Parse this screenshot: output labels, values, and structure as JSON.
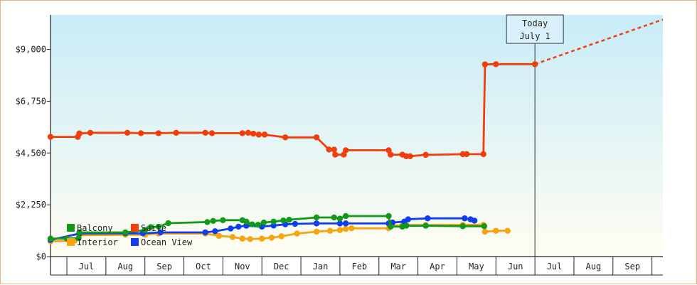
{
  "chart_data": {
    "type": "line",
    "y_ticks": [
      "$0",
      "$2,250",
      "$4,500",
      "$6,750",
      "$9,000"
    ],
    "y_tick_values": [
      0,
      2250,
      4500,
      6750,
      9000
    ],
    "ylim": [
      0,
      10500
    ],
    "month_labels": [
      "Jul",
      "Aug",
      "Sep",
      "Oct",
      "Nov",
      "Dec",
      "Jan",
      "Feb",
      "Mar",
      "Apr",
      "May",
      "Jun",
      "Jul",
      "Aug",
      "Sep"
    ],
    "x_unit": "month index, 0 = start of Jul (year 1), 15 = end of Sep (year 2)",
    "xlim": [
      -0.42,
      15.28
    ],
    "grid": false,
    "background_gradient": [
      "#c8ecf8",
      "#fffdf2"
    ],
    "today": {
      "line1": "Today",
      "line2": "July 1",
      "x": 12.0
    },
    "legend": {
      "placement": "bottom-left",
      "entries": [
        {
          "name": "Balcony",
          "color": "#119a19"
        },
        {
          "name": "Suite",
          "color": "#f23e0a"
        },
        {
          "name": "Interior",
          "color": "#f6a511"
        },
        {
          "name": "Ocean View",
          "color": "#0f3df0"
        }
      ]
    },
    "series": [
      {
        "name": "Suite",
        "color": "#f23e0a",
        "points": [
          [
            -0.42,
            5200
          ],
          [
            0.28,
            5200
          ],
          [
            0.32,
            5350
          ],
          [
            0.6,
            5380
          ],
          [
            1.55,
            5380
          ],
          [
            1.9,
            5360
          ],
          [
            2.35,
            5360
          ],
          [
            2.8,
            5380
          ],
          [
            3.55,
            5380
          ],
          [
            3.72,
            5360
          ],
          [
            4.5,
            5360
          ],
          [
            4.65,
            5380
          ],
          [
            4.78,
            5340
          ],
          [
            4.92,
            5300
          ],
          [
            5.07,
            5300
          ],
          [
            5.6,
            5180
          ],
          [
            6.4,
            5180
          ],
          [
            6.72,
            4650
          ],
          [
            6.85,
            4650
          ],
          [
            6.88,
            4430
          ],
          [
            7.1,
            4430
          ],
          [
            7.15,
            4620
          ],
          [
            8.25,
            4620
          ],
          [
            8.3,
            4430
          ],
          [
            8.6,
            4430
          ],
          [
            8.7,
            4360
          ],
          [
            8.8,
            4360
          ],
          [
            9.2,
            4420
          ],
          [
            10.15,
            4450
          ],
          [
            10.25,
            4450
          ],
          [
            10.68,
            4450
          ],
          [
            10.72,
            8350
          ],
          [
            11.0,
            8360
          ],
          [
            12.0,
            8360
          ]
        ],
        "projection": [
          [
            12.0,
            8360
          ],
          [
            15.28,
            10300
          ]
        ]
      },
      {
        "name": "Balcony",
        "color": "#119a19",
        "points": [
          [
            -0.42,
            780
          ],
          [
            0.0,
            780
          ],
          [
            0.3,
            800
          ],
          [
            0.32,
            1050
          ],
          [
            1.5,
            1050
          ],
          [
            2.0,
            1150
          ],
          [
            2.15,
            1280
          ],
          [
            2.35,
            1300
          ],
          [
            2.6,
            1450
          ],
          [
            3.6,
            1500
          ],
          [
            3.75,
            1550
          ],
          [
            4.0,
            1580
          ],
          [
            4.5,
            1580
          ],
          [
            4.6,
            1520
          ],
          [
            4.75,
            1400
          ],
          [
            4.9,
            1380
          ],
          [
            5.05,
            1480
          ],
          [
            5.3,
            1520
          ],
          [
            5.55,
            1570
          ],
          [
            5.7,
            1600
          ],
          [
            6.4,
            1700
          ],
          [
            6.85,
            1700
          ],
          [
            7.0,
            1650
          ],
          [
            7.15,
            1760
          ],
          [
            8.25,
            1760
          ],
          [
            8.3,
            1300
          ],
          [
            8.6,
            1300
          ],
          [
            8.7,
            1340
          ],
          [
            9.2,
            1340
          ],
          [
            10.15,
            1320
          ],
          [
            10.7,
            1320
          ]
        ]
      },
      {
        "name": "Interior",
        "color": "#f6a511",
        "points": [
          [
            -0.42,
            660
          ],
          [
            0.2,
            690
          ],
          [
            0.32,
            930
          ],
          [
            1.5,
            950
          ],
          [
            2.0,
            950
          ],
          [
            2.35,
            1000
          ],
          [
            3.55,
            1000
          ],
          [
            3.9,
            900
          ],
          [
            4.25,
            850
          ],
          [
            4.5,
            780
          ],
          [
            4.7,
            760
          ],
          [
            5.0,
            780
          ],
          [
            5.25,
            820
          ],
          [
            5.5,
            880
          ],
          [
            5.9,
            1000
          ],
          [
            6.4,
            1080
          ],
          [
            6.75,
            1120
          ],
          [
            7.0,
            1150
          ],
          [
            7.15,
            1200
          ],
          [
            7.3,
            1230
          ],
          [
            8.25,
            1230
          ],
          [
            8.3,
            1350
          ],
          [
            8.6,
            1350
          ],
          [
            8.7,
            1370
          ],
          [
            9.2,
            1370
          ],
          [
            10.15,
            1380
          ],
          [
            10.68,
            1380
          ],
          [
            10.72,
            1080
          ],
          [
            11.0,
            1120
          ],
          [
            11.3,
            1120
          ]
        ]
      },
      {
        "name": "Ocean View",
        "color": "#0f3df0",
        "points": [
          [
            -0.42,
            720
          ],
          [
            0.32,
            1000
          ],
          [
            1.5,
            1010
          ],
          [
            1.95,
            1010
          ],
          [
            2.4,
            1050
          ],
          [
            3.55,
            1050
          ],
          [
            3.8,
            1100
          ],
          [
            4.2,
            1220
          ],
          [
            4.4,
            1300
          ],
          [
            4.6,
            1340
          ],
          [
            5.0,
            1300
          ],
          [
            5.3,
            1350
          ],
          [
            5.6,
            1400
          ],
          [
            5.85,
            1420
          ],
          [
            6.4,
            1440
          ],
          [
            7.0,
            1440
          ],
          [
            7.15,
            1440
          ],
          [
            8.25,
            1440
          ],
          [
            8.35,
            1480
          ],
          [
            8.65,
            1520
          ],
          [
            8.75,
            1620
          ],
          [
            9.25,
            1660
          ],
          [
            10.2,
            1660
          ],
          [
            10.35,
            1620
          ],
          [
            10.45,
            1560
          ]
        ]
      }
    ]
  }
}
